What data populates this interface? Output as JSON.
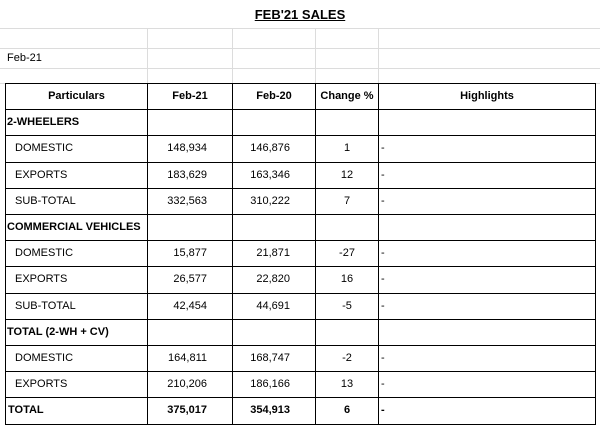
{
  "title": "FEB'21 SALES",
  "date_label": "Feb-21",
  "table": {
    "header": [
      "Particulars",
      "Feb-21",
      "Feb-20",
      "Change %",
      "Highlights"
    ],
    "sections": [
      {
        "name": "2-WHEELERS",
        "rows": [
          [
            "DOMESTIC",
            "148,934",
            "146,876",
            "1",
            "-"
          ],
          [
            "EXPORTS",
            "183,629",
            "163,346",
            "12",
            "-"
          ],
          [
            "SUB-TOTAL",
            "332,563",
            "310,222",
            "7",
            "-"
          ]
        ]
      },
      {
        "name": "COMMERCIAL VEHICLES",
        "rows": [
          [
            "DOMESTIC",
            "15,877",
            "21,871",
            "-27",
            "-"
          ],
          [
            "EXPORTS",
            "26,577",
            "22,820",
            "16",
            "-"
          ],
          [
            "SUB-TOTAL",
            "42,454",
            "44,691",
            "-5",
            "-"
          ]
        ]
      },
      {
        "name": "TOTAL (2-WH + CV)",
        "rows": [
          [
            "DOMESTIC",
            "164,811",
            "168,747",
            "-2",
            "-"
          ],
          [
            "EXPORTS",
            "210,206",
            "186,166",
            "13",
            "-"
          ]
        ],
        "total": [
          "TOTAL",
          "375,017",
          "354,913",
          "6",
          "-"
        ]
      }
    ]
  }
}
